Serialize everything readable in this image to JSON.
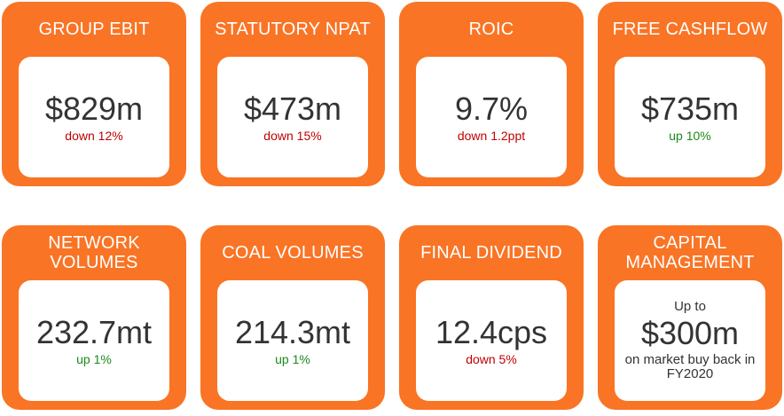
{
  "cards": [
    {
      "title": "GROUP EBIT",
      "value": "$829m",
      "change": "down 12%"
    },
    {
      "title": "STATUTORY NPAT",
      "value": "$473m",
      "change": "down 15%"
    },
    {
      "title": "ROIC",
      "value": "9.7%",
      "change": "down 1.2ppt"
    },
    {
      "title": "FREE CASHFLOW",
      "value": "$735m",
      "change": "up 10%"
    },
    {
      "title": "NETWORK VOLUMES",
      "value": "232.7mt",
      "change": "up 1%"
    },
    {
      "title": "COAL VOLUMES",
      "value": "214.3mt",
      "change": "up 1%"
    },
    {
      "title": "FINAL DIVIDEND",
      "value": "12.4cps",
      "change": "down 5%"
    },
    {
      "title": "CAPITAL MANAGEMENT",
      "pre": "Up to",
      "value": "$300m",
      "post": "on market buy back in FY2020"
    }
  ],
  "colors": {
    "card": "#f97425",
    "down": "#c00000",
    "up": "#1a8a1a"
  }
}
